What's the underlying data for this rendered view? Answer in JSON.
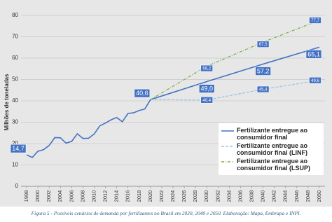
{
  "chart_data": {
    "type": "line",
    "y_label": "Milhões de toneladas",
    "caption": "Figura 5 - Possíveis cenários de demanda por fertilizantes no Brasil em 2030, 2040 e 2050. Elaboração: Mapa, Embrapa e INPI.",
    "xlim": [
      1997,
      2051
    ],
    "ylim": [
      0,
      80
    ],
    "xticks": [
      1998,
      2000,
      2002,
      2004,
      2006,
      2008,
      2010,
      2012,
      2014,
      2016,
      2018,
      2020,
      2022,
      2024,
      2026,
      2028,
      2030,
      2032,
      2034,
      2036,
      2038,
      2040,
      2042,
      2044,
      2046,
      2048,
      2050
    ],
    "yticks": [
      0,
      10,
      20,
      30,
      40,
      50,
      60,
      70,
      80
    ],
    "grid": true,
    "series": [
      {
        "name": "Fertilizante entregue  ao consumidor final",
        "color": "#4472c4",
        "style": "solid",
        "x": [
          1998,
          1999,
          2000,
          2001,
          2002,
          2003,
          2004,
          2005,
          2006,
          2007,
          2008,
          2009,
          2010,
          2011,
          2012,
          2013,
          2014,
          2015,
          2016,
          2017,
          2018,
          2019,
          2020,
          2030,
          2040,
          2050
        ],
        "values": [
          14.7,
          13.5,
          16.4,
          17.1,
          19.1,
          22.8,
          22.7,
          20.2,
          21.0,
          24.6,
          22.4,
          22.5,
          24.5,
          28.3,
          29.6,
          31.1,
          32.2,
          30.2,
          34.1,
          34.4,
          35.5,
          36.2,
          40.6,
          49.0,
          57.2,
          65.1
        ],
        "value_labels": [
          "14,7",
          null,
          null,
          null,
          null,
          null,
          null,
          null,
          null,
          null,
          null,
          null,
          null,
          null,
          null,
          null,
          null,
          null,
          null,
          null,
          null,
          null,
          "40,6",
          "49,0",
          "57,2",
          "65,1"
        ]
      },
      {
        "name": "Fertilizante entregue  ao consumidor final (LINF)",
        "color": "#9dc3e6",
        "style": "dashed",
        "x": [
          2020,
          2030,
          2040,
          2050
        ],
        "values": [
          40.6,
          40.4,
          45.4,
          49.6
        ],
        "value_labels": [
          null,
          "40,4",
          "45,4",
          "49,6"
        ]
      },
      {
        "name": "Fertilizante entregue  ao consumidor final (LSUP)",
        "color": "#70ad47",
        "style": "dashdot",
        "x": [
          2020,
          2030,
          2040,
          2050
        ],
        "values": [
          40.6,
          56.2,
          67.5,
          77.7
        ],
        "value_labels": [
          null,
          "56,2",
          "67,5",
          "77,7"
        ]
      }
    ],
    "legend": "lower right"
  }
}
